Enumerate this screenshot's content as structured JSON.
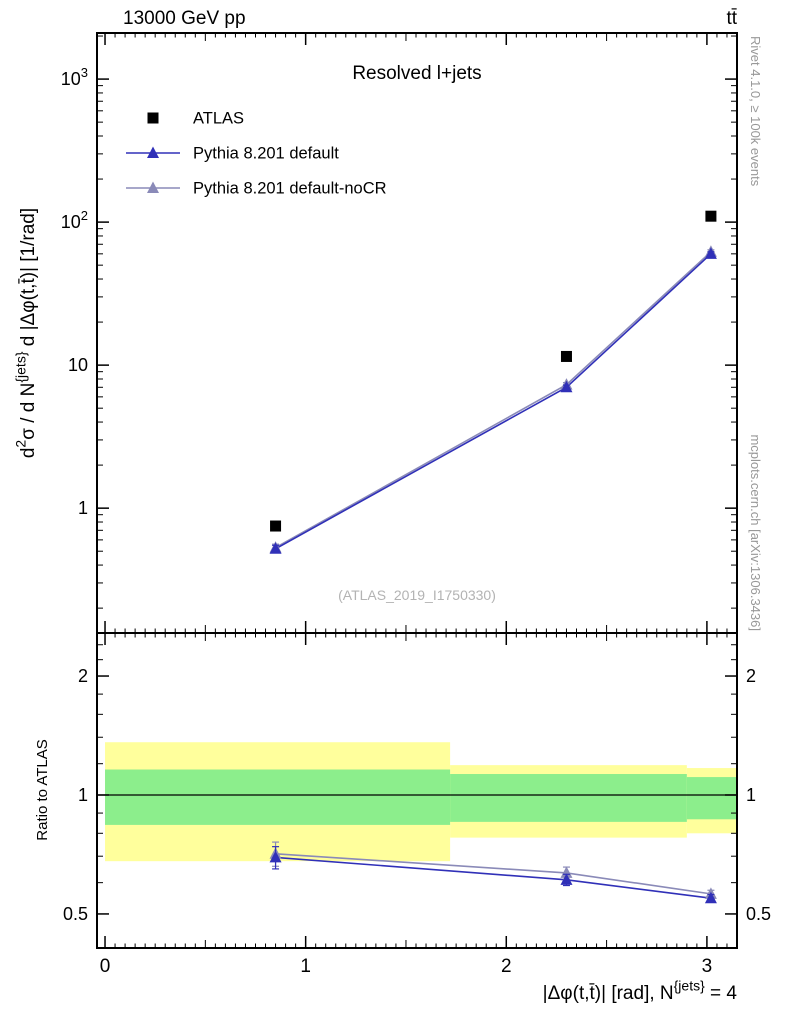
{
  "header": {
    "left": "13000 GeV pp",
    "right": "tt̄"
  },
  "panel_title": "Resolved l+jets",
  "watermark": "(ATLAS_2019_I1750330)",
  "side_notes": {
    "top": "Rivet 4.1.0, ≥ 100k events",
    "bottom": "mcplots.cern.ch [arXiv:1306.3436]"
  },
  "colors": {
    "frame": "#000000",
    "atlas": "#000000",
    "pythia_default": "#3030b8",
    "pythia_nocr": "#8a8ab8",
    "band_yellow": "#ffff9c",
    "band_green": "#8cee8c",
    "watermark": "#b3b3b3",
    "side_note": "#989898"
  },
  "chart_data": {
    "type": "line",
    "title": "Resolved l+jets",
    "x_scale": "linear",
    "y_scale": "log",
    "x_range": [
      -0.04,
      3.15
    ],
    "y_main_range": [
      0.134,
      2100
    ],
    "y_ratio_range": [
      0.41,
      2.57
    ],
    "xlabel_segments": [
      {
        "t": "|Δφ(t,t̄)| [rad], N"
      },
      {
        "t": "{jets}",
        "sup": true
      },
      {
        "t": " = 4"
      }
    ],
    "ylabel_segments": [
      {
        "t": "d"
      },
      {
        "t": "2",
        "sup": true
      },
      {
        "t": "σ / d N"
      },
      {
        "t": "{jets}",
        "sup": true
      },
      {
        "t": " d |Δφ(t,t̄)| [1/rad]"
      }
    ],
    "ratio_ylabel": "Ratio to ATLAS",
    "x_ticks": {
      "major": [
        {
          "v": 0,
          "t": "0"
        },
        {
          "v": 1,
          "t": "1"
        },
        {
          "v": 2,
          "t": "2"
        },
        {
          "v": 3,
          "t": "3"
        }
      ],
      "minor_step": 0.05
    },
    "y_ticks_main": [
      {
        "v": 1,
        "segs": [
          {
            "t": "1"
          }
        ]
      },
      {
        "v": 10,
        "segs": [
          {
            "t": "10"
          }
        ]
      },
      {
        "v": 100,
        "segs": [
          {
            "t": "10"
          },
          {
            "t": "2",
            "sup": true
          }
        ]
      },
      {
        "v": 1000,
        "segs": [
          {
            "t": "10"
          },
          {
            "t": "3",
            "sup": true
          }
        ]
      }
    ],
    "y_ticks_ratio": {
      "major": [
        {
          "v": 0.5,
          "t": "0.5"
        },
        {
          "v": 1,
          "t": "1"
        },
        {
          "v": 2,
          "t": "2"
        }
      ],
      "minor": [
        0.6,
        0.7,
        0.8,
        0.9,
        1.2,
        1.4,
        1.6,
        1.8,
        2.2,
        2.4
      ]
    },
    "series": [
      {
        "name": "ATLAS",
        "marker": "square",
        "color_key": "atlas",
        "line": false,
        "points": [
          {
            "x": 0.85,
            "y": 0.75
          },
          {
            "x": 2.3,
            "y": 11.5
          },
          {
            "x": 3.02,
            "y": 110
          }
        ]
      },
      {
        "name": "Pythia 8.201 default",
        "marker": "triangle",
        "color_key": "pythia_default",
        "line": true,
        "points": [
          {
            "x": 0.85,
            "y": 0.52,
            "err": 0.03
          },
          {
            "x": 2.3,
            "y": 7.0,
            "err": 0.25
          },
          {
            "x": 3.02,
            "y": 60,
            "err": 2
          }
        ],
        "ratio": [
          {
            "x": 0.85,
            "y": 0.695,
            "err": 0.045
          },
          {
            "x": 2.3,
            "y": 0.61,
            "err": 0.02
          },
          {
            "x": 3.02,
            "y": 0.548,
            "err": 0.012
          }
        ]
      },
      {
        "name": "Pythia 8.201 default-noCR",
        "marker": "triangle",
        "color_key": "pythia_nocr",
        "line": true,
        "points": [
          {
            "x": 0.85,
            "y": 0.53,
            "err": 0.03
          },
          {
            "x": 2.3,
            "y": 7.3,
            "err": 0.25
          },
          {
            "x": 3.02,
            "y": 62,
            "err": 2
          }
        ],
        "ratio": [
          {
            "x": 0.85,
            "y": 0.71,
            "err": 0.05
          },
          {
            "x": 2.3,
            "y": 0.635,
            "err": 0.022
          },
          {
            "x": 3.02,
            "y": 0.562,
            "err": 0.012
          }
        ]
      }
    ],
    "ratio_bands": {
      "yellow": [
        {
          "x1": 0,
          "x2": 1.72,
          "lo": 0.68,
          "hi": 1.36
        },
        {
          "x1": 1.72,
          "x2": 2.9,
          "lo": 0.78,
          "hi": 1.19
        },
        {
          "x1": 2.9,
          "x2": 3.15,
          "lo": 0.8,
          "hi": 1.17
        }
      ],
      "green": [
        {
          "x1": 0,
          "x2": 1.72,
          "lo": 0.84,
          "hi": 1.16
        },
        {
          "x1": 1.72,
          "x2": 2.9,
          "lo": 0.855,
          "hi": 1.13
        },
        {
          "x1": 2.9,
          "x2": 3.15,
          "lo": 0.868,
          "hi": 1.11
        }
      ]
    },
    "legend": [
      {
        "label": "ATLAS",
        "marker": "square",
        "color_key": "atlas",
        "line": false
      },
      {
        "label": "Pythia 8.201 default",
        "marker": "triangle",
        "color_key": "pythia_default",
        "line": true
      },
      {
        "label": "Pythia 8.201 default-noCR",
        "marker": "triangle",
        "color_key": "pythia_nocr",
        "line": true
      }
    ]
  }
}
